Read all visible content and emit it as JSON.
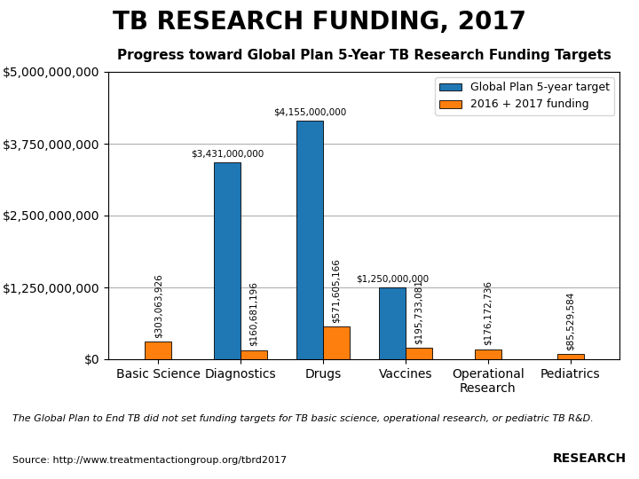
{
  "chart_data": {
    "type": "bar",
    "title": "TB RESEARCH FUNDING, 2017",
    "subtitle": "Progress toward Global Plan 5-Year TB Research Funding Targets",
    "categories": [
      "Basic Science",
      "Diagnostics",
      "Drugs",
      "Vaccines",
      "Operational\nResearch",
      "Pediatrics"
    ],
    "series": [
      {
        "name": "Global Plan 5-year target",
        "values": [
          null,
          3431000000,
          4155000000,
          1250000000,
          null,
          null
        ],
        "value_labels": [
          null,
          "$3,431,000,000",
          "$4,155,000,000",
          "$1,250,000,000",
          null,
          null
        ]
      },
      {
        "name": "2016 + 2017 funding",
        "values": [
          303063926,
          160681196,
          571605166,
          195733081,
          176172736,
          85529584
        ],
        "value_labels": [
          "$303,063,926",
          "$160,681,196",
          "$571,605,166",
          "$195,733,081",
          "$176,172,736",
          "$85,529,584"
        ]
      }
    ],
    "ylim": [
      0,
      5000000000
    ],
    "yticks": [
      {
        "value": 0,
        "label": "$0"
      },
      {
        "value": 1250000000,
        "label": "$1,250,000,000"
      },
      {
        "value": 2500000000,
        "label": "$2,500,000,000"
      },
      {
        "value": 3750000000,
        "label": "$3,750,000,000"
      },
      {
        "value": 5000000000,
        "label": "$5,000,000,000"
      }
    ],
    "grid": true,
    "legend": "upper right",
    "data_labels": true,
    "annotations": [
      "The Global Plan to End TB did not set funding targets for TB basic science, operational research, or pediatric TB R&D.",
      "Source: http://www.treatmentactiongroup.org/tbrd2017",
      "RESEARCH"
    ]
  }
}
